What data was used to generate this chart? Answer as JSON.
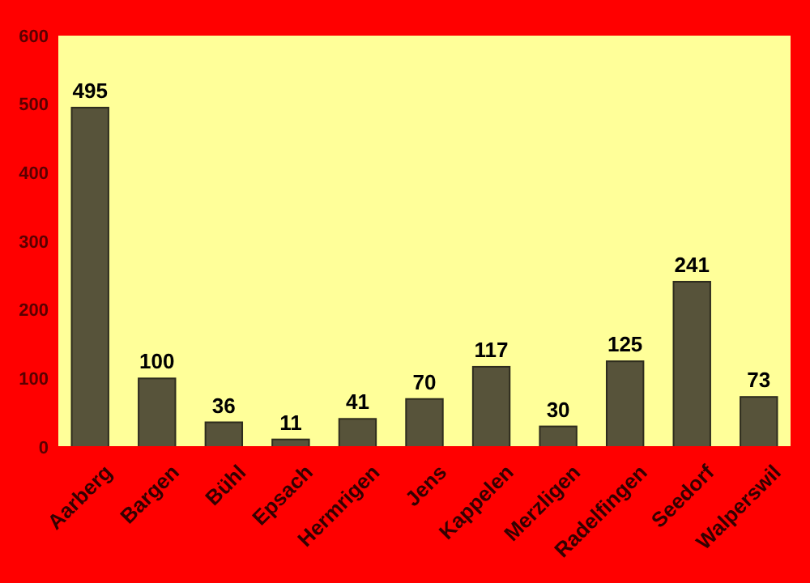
{
  "chart_data": {
    "type": "bar",
    "categories": [
      "Aarberg",
      "Bargen",
      "Bühl",
      "Epsach",
      "Hermrigen",
      "Jens",
      "Kappelen",
      "Merzligen",
      "Radelfingen",
      "Seedorf",
      "Walperswil"
    ],
    "values": [
      495,
      100,
      36,
      11,
      41,
      70,
      117,
      30,
      125,
      241,
      73
    ],
    "color": "#57533a",
    "ylim": [
      0,
      600
    ],
    "yticks": [
      0,
      100,
      200,
      300,
      400,
      500,
      600
    ],
    "grid": false,
    "data_labels": true
  }
}
